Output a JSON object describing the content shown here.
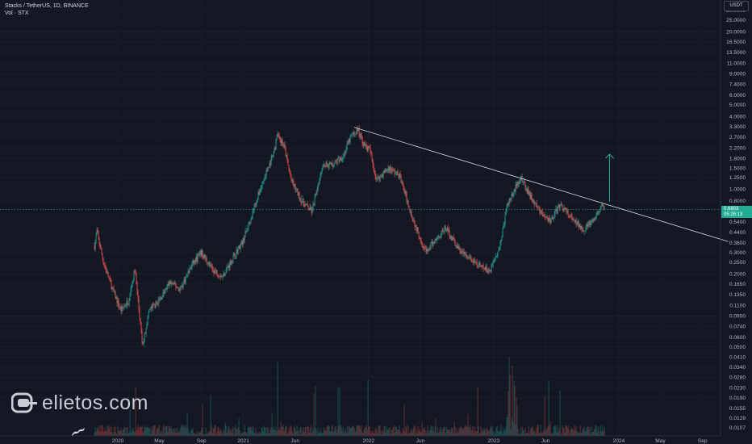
{
  "legend": {
    "title": "Stacks / TetherUS, 1D, BINANCE",
    "volume": "Vol · STX"
  },
  "currency": "USDT",
  "price_tag": {
    "price": "0.6803",
    "countdown": "05:26:13"
  },
  "watermark": {
    "text": "elietos.com"
  },
  "colors": {
    "background": "#131722",
    "up": "#26a69a",
    "down": "#ef5350",
    "trendline": "#d1d4dc",
    "arrow": "#22ab94",
    "grid": "#1e222d"
  },
  "chart_data": {
    "type": "candlestick",
    "title": "Stacks / TetherUS, 1D, BINANCE",
    "y_scale": "log",
    "y_ticks": [
      "30.0000",
      "25.0000",
      "20.0000",
      "16.5000",
      "13.5000",
      "11.0000",
      "9.0000",
      "7.4000",
      "6.0000",
      "5.0000",
      "4.0000",
      "3.3000",
      "2.7000",
      "2.2000",
      "1.8000",
      "1.5000",
      "1.2500",
      "1.0000",
      "0.8000",
      "0.6803",
      "0.5400",
      "0.4400",
      "0.3600",
      "0.3000",
      "0.2500",
      "0.2000",
      "0.1650",
      "0.1350",
      "0.1100",
      "0.0900",
      "0.0740",
      "0.0600",
      "0.0500",
      "0.0410",
      "0.0340",
      "0.0280",
      "0.0230",
      "0.0190",
      "0.0155",
      "0.0129",
      "0.0107"
    ],
    "x_ticks": [
      "2020",
      "May",
      "Sep",
      "2021",
      "Jun",
      "2022",
      "Jun",
      "2023",
      "Jun",
      "2024",
      "May",
      "Sep"
    ],
    "price_path": [
      [
        "2019-10-25",
        0.34
      ],
      [
        "2019-11-01",
        0.45
      ],
      [
        "2019-11-20",
        0.25
      ],
      [
        "2019-12-20",
        0.14
      ],
      [
        "2020-01-10",
        0.1
      ],
      [
        "2020-02-01",
        0.12
      ],
      [
        "2020-02-20",
        0.22
      ],
      [
        "2020-03-13",
        0.05
      ],
      [
        "2020-04-01",
        0.1
      ],
      [
        "2020-05-01",
        0.12
      ],
      [
        "2020-06-01",
        0.17
      ],
      [
        "2020-07-01",
        0.15
      ],
      [
        "2020-08-05",
        0.24
      ],
      [
        "2020-09-01",
        0.3
      ],
      [
        "2020-10-01",
        0.22
      ],
      [
        "2020-11-01",
        0.19
      ],
      [
        "2020-12-01",
        0.27
      ],
      [
        "2021-01-01",
        0.38
      ],
      [
        "2021-02-01",
        0.7
      ],
      [
        "2021-03-01",
        1.2
      ],
      [
        "2021-04-01",
        2.0
      ],
      [
        "2021-04-10",
        2.9
      ],
      [
        "2021-05-01",
        2.2
      ],
      [
        "2021-05-20",
        1.2
      ],
      [
        "2021-06-20",
        0.8
      ],
      [
        "2021-07-20",
        0.65
      ],
      [
        "2021-08-20",
        1.6
      ],
      [
        "2021-09-20",
        1.6
      ],
      [
        "2021-10-20",
        1.9
      ],
      [
        "2021-11-10",
        2.7
      ],
      [
        "2021-12-01",
        3.1
      ],
      [
        "2021-12-20",
        2.3
      ],
      [
        "2022-01-05",
        2.1
      ],
      [
        "2022-01-24",
        1.2
      ],
      [
        "2022-03-01",
        1.5
      ],
      [
        "2022-04-01",
        1.3
      ],
      [
        "2022-05-12",
        0.55
      ],
      [
        "2022-06-18",
        0.3
      ],
      [
        "2022-07-20",
        0.4
      ],
      [
        "2022-08-15",
        0.48
      ],
      [
        "2022-09-20",
        0.32
      ],
      [
        "2022-11-10",
        0.24
      ],
      [
        "2022-12-20",
        0.21
      ],
      [
        "2023-01-20",
        0.35
      ],
      [
        "2023-02-10",
        0.75
      ],
      [
        "2023-03-20",
        1.25
      ],
      [
        "2023-04-15",
        0.9
      ],
      [
        "2023-05-15",
        0.65
      ],
      [
        "2023-06-15",
        0.55
      ],
      [
        "2023-07-15",
        0.75
      ],
      [
        "2023-08-20",
        0.55
      ],
      [
        "2023-09-20",
        0.47
      ],
      [
        "2023-10-20",
        0.55
      ],
      [
        "2023-11-10",
        0.72
      ],
      [
        "2023-11-20",
        0.6803
      ]
    ],
    "trendline": [
      [
        "2021-11-20",
        3.25
      ],
      [
        "2024-11-15",
        0.37
      ]
    ],
    "projection_arrow": {
      "date": "2023-12-05",
      "from": 0.79,
      "to": 1.95
    }
  }
}
